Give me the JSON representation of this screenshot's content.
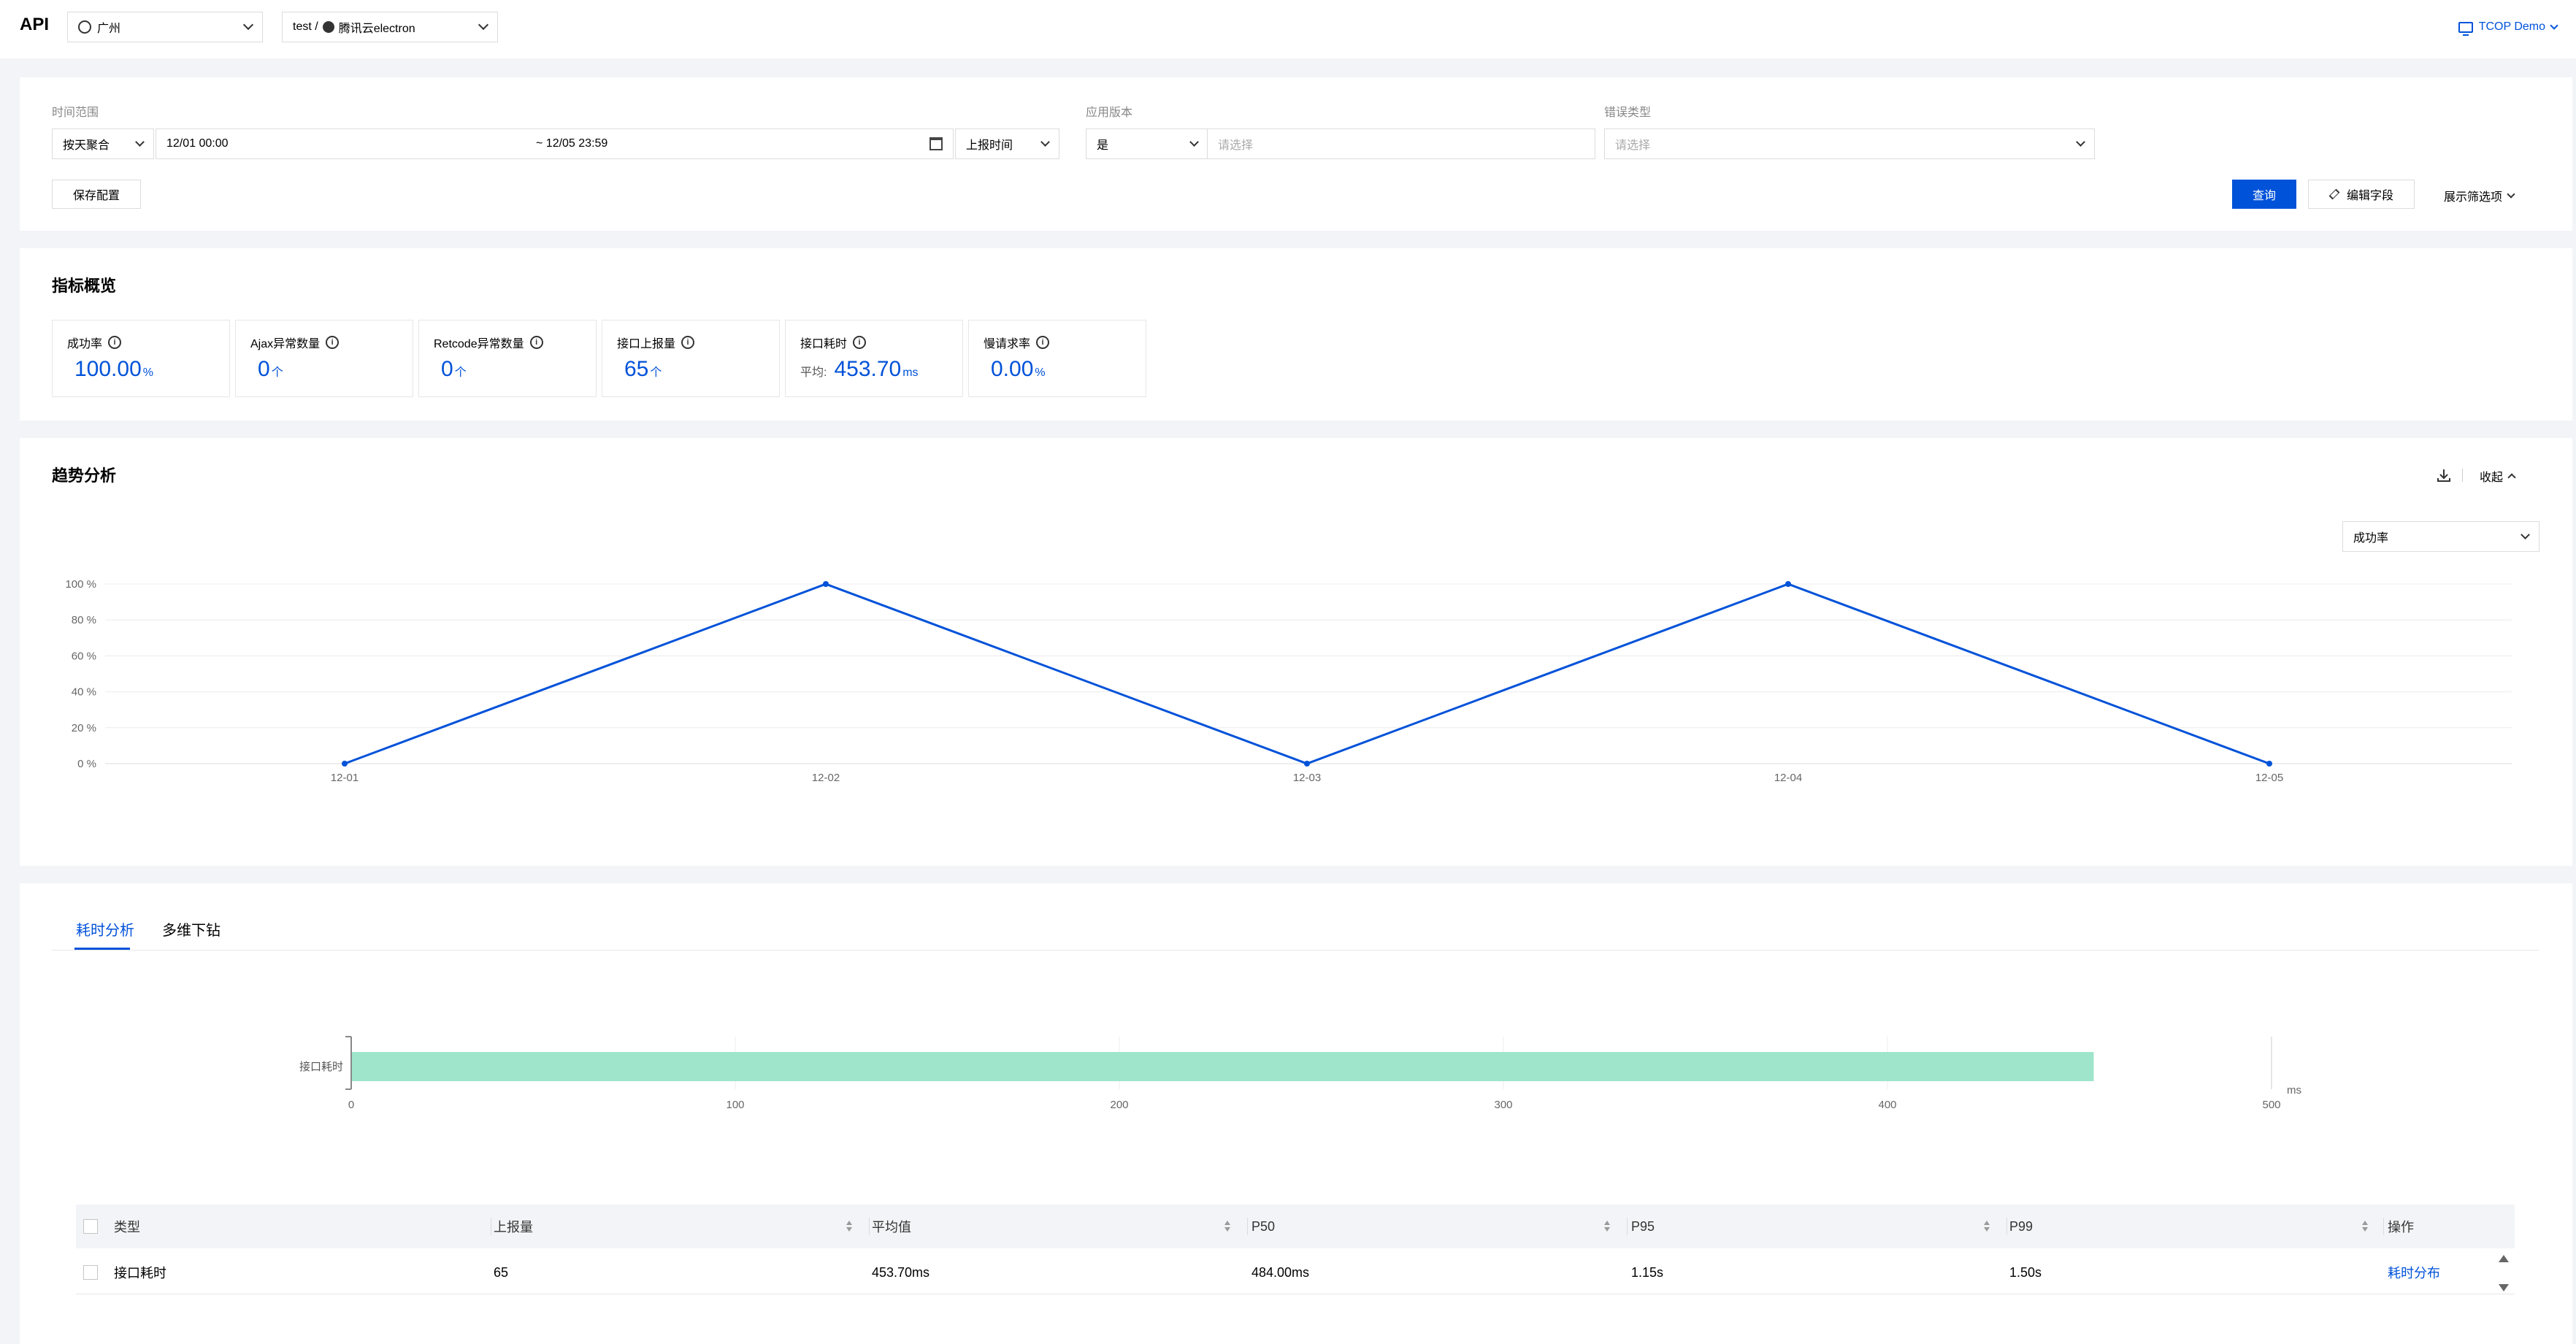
{
  "topbar": {
    "title": "API",
    "region": "广州",
    "project_prefix": "test /",
    "project_name": "腾讯云electron",
    "account": "TCOP Demo"
  },
  "filters": {
    "time_range_label": "时间范围",
    "aggregate": "按天聚合",
    "start": "12/01 00:00",
    "end": "~ 12/05 23:59",
    "time_type": "上报时间",
    "app_version_label": "应用版本",
    "version_op": "是",
    "version_placeholder": "请选择",
    "error_type_label": "错误类型",
    "error_placeholder": "请选择",
    "save_config": "保存配置",
    "query": "查询",
    "edit_fields": "编辑字段",
    "show_filters": "展示筛选项"
  },
  "overview": {
    "title": "指标概览",
    "metrics": [
      {
        "name": "成功率",
        "prefix": "",
        "value": "100.00",
        "unit": "%"
      },
      {
        "name": "Ajax异常数量",
        "prefix": "",
        "value": "0",
        "unit": "个"
      },
      {
        "name": "Retcode异常数量",
        "prefix": "",
        "value": "0",
        "unit": "个"
      },
      {
        "name": "接口上报量",
        "prefix": "",
        "value": "65",
        "unit": "个"
      },
      {
        "name": "接口耗时",
        "prefix": "平均:",
        "value": "453.70",
        "unit": "ms"
      },
      {
        "name": "慢请求率",
        "prefix": "",
        "value": "0.00",
        "unit": "%"
      }
    ]
  },
  "trend": {
    "title": "趋势分析",
    "collapse": "收起",
    "metric_select": "成功率"
  },
  "chart_data": [
    {
      "type": "line",
      "categories": [
        "12-01",
        "12-02",
        "12-03",
        "12-04",
        "12-05"
      ],
      "values": [
        0,
        100,
        0,
        100,
        0
      ],
      "y_ticks": [
        "0 %",
        "20 %",
        "40 %",
        "60 %",
        "80 %",
        "100 %"
      ],
      "ylim": [
        0,
        100
      ],
      "grid": true,
      "color": "#0052d9"
    },
    {
      "type": "bar",
      "orientation": "horizontal",
      "categories": [
        "接口耗时"
      ],
      "values": [
        453.7
      ],
      "x_ticks": [
        "0",
        "100",
        "200",
        "300",
        "400",
        "500"
      ],
      "xlim": [
        0,
        500
      ],
      "unit": "ms",
      "color": "#9ee5cb"
    }
  ],
  "tabs": {
    "duration": "耗时分析",
    "drill": "多维下钻"
  },
  "table": {
    "headers": [
      "类型",
      "上报量",
      "平均值",
      "P50",
      "P95",
      "P99",
      "操作"
    ],
    "row": {
      "type": "接口耗时",
      "count": "65",
      "avg": "453.70ms",
      "p50": "484.00ms",
      "p95": "1.15s",
      "p99": "1.50s",
      "action": "耗时分布"
    }
  }
}
